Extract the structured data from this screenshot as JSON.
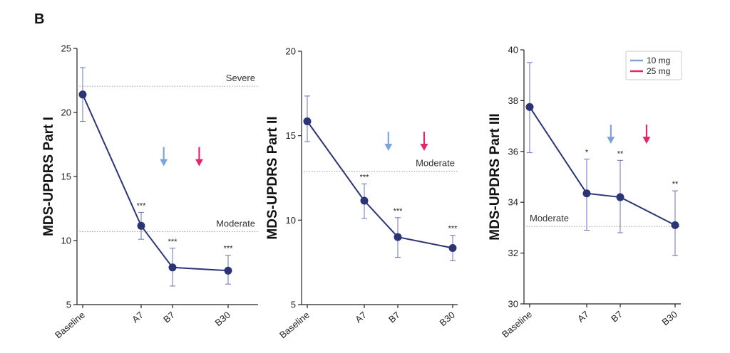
{
  "figure": {
    "panel_label": "B",
    "colors": {
      "series": "#2b3576",
      "error_bar": "#6b72b8",
      "reference": "#9a9a9a",
      "dose_10": "#7fa4d9",
      "dose_25": "#e0286f",
      "axis": "#222222"
    },
    "legend": [
      {
        "label": "10 mg",
        "color": "#7fa4d9"
      },
      {
        "label": "25 mg",
        "color": "#e0286f"
      }
    ]
  },
  "chart_data": [
    {
      "type": "line",
      "ylabel": "MDS-UPDRS Part I",
      "categories": [
        "Baseline",
        "A7",
        "B7",
        "B30"
      ],
      "ylim": [
        5,
        25
      ],
      "yticks": [
        5,
        10,
        15,
        20,
        25
      ],
      "values": [
        21.4,
        11.15,
        7.9,
        7.65
      ],
      "error_low": [
        19.3,
        10.1,
        6.45,
        6.6
      ],
      "error_high": [
        23.5,
        12.2,
        9.4,
        8.85
      ],
      "significance": [
        "",
        "***",
        "***",
        "***"
      ],
      "reference_lines": [
        {
          "label": "Severe",
          "value": 22.05
        },
        {
          "label": "Moderate",
          "value": 10.7
        }
      ],
      "dose_arrows": [
        {
          "dose": "10 mg",
          "position": 1.72,
          "value": 15.8
        },
        {
          "dose": "25 mg",
          "position": 2.48,
          "value": 15.8
        }
      ]
    },
    {
      "type": "line",
      "ylabel": "MDS-UPDRS Part II",
      "categories": [
        "Baseline",
        "A7",
        "B7",
        "B30"
      ],
      "ylim": [
        5,
        20
      ],
      "yticks": [
        5,
        10,
        15,
        20
      ],
      "values": [
        15.85,
        11.15,
        9.0,
        8.35
      ],
      "error_low": [
        14.65,
        10.1,
        7.8,
        7.6
      ],
      "error_high": [
        17.35,
        12.15,
        10.15,
        9.1
      ],
      "significance": [
        "",
        "***",
        "***",
        "***"
      ],
      "reference_lines": [
        {
          "label": "Moderate",
          "value": 12.9
        }
      ],
      "dose_arrows": [
        {
          "dose": "10 mg",
          "position": 1.72,
          "value": 14.1
        },
        {
          "dose": "25 mg",
          "position": 2.48,
          "value": 14.1
        }
      ]
    },
    {
      "type": "line",
      "ylabel": "MDS-UPDRS Part III",
      "categories": [
        "Baseline",
        "A7",
        "B7",
        "B30"
      ],
      "ylim": [
        30,
        40
      ],
      "yticks": [
        30,
        32,
        34,
        36,
        38,
        40
      ],
      "values": [
        37.75,
        34.35,
        34.2,
        33.1
      ],
      "error_low": [
        35.95,
        32.9,
        32.8,
        31.9
      ],
      "error_high": [
        39.5,
        35.7,
        35.65,
        34.45
      ],
      "significance": [
        "",
        "*",
        "**",
        "**"
      ],
      "reference_lines": [
        {
          "label": "Moderate",
          "value": 33.05
        }
      ],
      "dose_arrows": [
        {
          "dose": "10 mg",
          "position": 1.72,
          "value": 36.3
        },
        {
          "dose": "25 mg",
          "position": 2.48,
          "value": 36.3
        }
      ]
    }
  ]
}
